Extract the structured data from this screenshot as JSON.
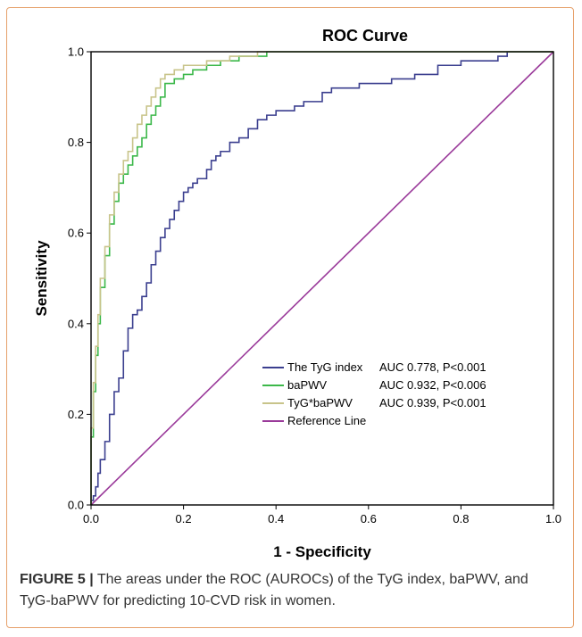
{
  "caption": {
    "lead": "FIGURE 5 |",
    "text": " The areas under the ROC (AUROCs) of the TyG index, baPWV, and TyG-baPWV for predicting 10-CVD risk in women."
  },
  "chart_data": {
    "type": "line",
    "title": "ROC Curve",
    "xlabel": "1 - Specificity",
    "ylabel": "Sensitivity",
    "xlim": [
      0,
      1
    ],
    "ylim": [
      0,
      1
    ],
    "xticks": [
      "0.0",
      "0.2",
      "0.4",
      "0.6",
      "0.8",
      "1.0"
    ],
    "yticks": [
      "0.0",
      "0.2",
      "0.4",
      "0.6",
      "0.8",
      "1.0"
    ],
    "grid": false,
    "legend_position": "lower-right",
    "series": [
      {
        "name": "The TyG index",
        "auc_label": "AUC 0.778, P<0.001",
        "color": "#3b3f8f",
        "x": [
          0,
          0.005,
          0.01,
          0.015,
          0.02,
          0.03,
          0.04,
          0.05,
          0.06,
          0.07,
          0.08,
          0.09,
          0.1,
          0.11,
          0.12,
          0.13,
          0.14,
          0.15,
          0.16,
          0.17,
          0.18,
          0.19,
          0.2,
          0.21,
          0.22,
          0.23,
          0.24,
          0.25,
          0.26,
          0.27,
          0.28,
          0.3,
          0.32,
          0.34,
          0.36,
          0.38,
          0.4,
          0.42,
          0.44,
          0.46,
          0.48,
          0.5,
          0.52,
          0.55,
          0.58,
          0.6,
          0.65,
          0.7,
          0.75,
          0.8,
          0.85,
          0.88,
          0.9,
          0.92,
          1.0
        ],
        "y": [
          0,
          0.01,
          0.02,
          0.04,
          0.07,
          0.1,
          0.14,
          0.2,
          0.25,
          0.28,
          0.34,
          0.39,
          0.42,
          0.43,
          0.46,
          0.49,
          0.53,
          0.56,
          0.59,
          0.61,
          0.63,
          0.65,
          0.67,
          0.69,
          0.7,
          0.71,
          0.72,
          0.72,
          0.74,
          0.76,
          0.77,
          0.78,
          0.8,
          0.81,
          0.83,
          0.85,
          0.86,
          0.87,
          0.87,
          0.88,
          0.89,
          0.89,
          0.91,
          0.92,
          0.92,
          0.93,
          0.93,
          0.94,
          0.95,
          0.97,
          0.98,
          0.98,
          0.99,
          1.0,
          1.0
        ]
      },
      {
        "name": "baPWV",
        "auc_label": "AUC 0.932, P<0.006",
        "color": "#3cb84a",
        "x": [
          0,
          0.005,
          0.01,
          0.015,
          0.02,
          0.03,
          0.04,
          0.05,
          0.06,
          0.07,
          0.08,
          0.09,
          0.1,
          0.11,
          0.12,
          0.13,
          0.14,
          0.15,
          0.16,
          0.18,
          0.2,
          0.22,
          0.25,
          0.28,
          0.3,
          0.32,
          0.35,
          0.38,
          0.42,
          0.46,
          0.5,
          1.0
        ],
        "y": [
          0,
          0.15,
          0.25,
          0.33,
          0.4,
          0.48,
          0.55,
          0.62,
          0.67,
          0.71,
          0.73,
          0.75,
          0.77,
          0.79,
          0.81,
          0.84,
          0.86,
          0.88,
          0.9,
          0.93,
          0.94,
          0.95,
          0.96,
          0.97,
          0.98,
          0.98,
          0.99,
          0.99,
          1.0,
          1.0,
          1.0,
          1.0
        ]
      },
      {
        "name": "TyG*baPWV",
        "auc_label": "AUC 0.939, P<0.001",
        "color": "#c8c48a",
        "x": [
          0,
          0.005,
          0.01,
          0.015,
          0.02,
          0.03,
          0.04,
          0.05,
          0.06,
          0.07,
          0.08,
          0.09,
          0.1,
          0.11,
          0.12,
          0.13,
          0.14,
          0.15,
          0.16,
          0.18,
          0.2,
          0.22,
          0.25,
          0.28,
          0.3,
          0.33,
          0.36,
          0.4,
          0.44,
          1.0
        ],
        "y": [
          0,
          0.17,
          0.27,
          0.35,
          0.42,
          0.5,
          0.57,
          0.64,
          0.69,
          0.73,
          0.76,
          0.78,
          0.81,
          0.84,
          0.86,
          0.88,
          0.9,
          0.92,
          0.94,
          0.95,
          0.96,
          0.97,
          0.97,
          0.98,
          0.98,
          0.99,
          0.99,
          1.0,
          1.0,
          1.0
        ]
      },
      {
        "name": "Reference Line",
        "auc_label": "",
        "color": "#9a3a9a",
        "x": [
          0,
          1
        ],
        "y": [
          0,
          1
        ]
      }
    ]
  }
}
